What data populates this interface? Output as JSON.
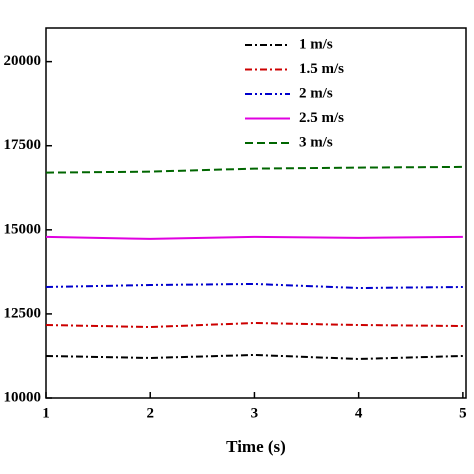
{
  "chart_data": {
    "type": "line",
    "x_label": "Time (s)",
    "x": [
      1,
      2,
      3,
      4,
      5
    ],
    "xlim": [
      1,
      5.03
    ],
    "xticks": [
      1,
      2,
      3,
      4,
      5
    ],
    "ylim": [
      10000,
      21000
    ],
    "yticks": [
      10000,
      12500,
      15000,
      17500,
      20000
    ],
    "series": [
      {
        "name": "1 m/s",
        "color": "#000000",
        "dash": "7,3,2,3",
        "values": [
          11250,
          11190,
          11280,
          11160,
          11250
        ]
      },
      {
        "name": "1.5 m/s",
        "color": "#cc0000",
        "dash": "7,3,2,3",
        "values": [
          12170,
          12110,
          12230,
          12170,
          12140
        ]
      },
      {
        "name": "2 m/s",
        "color": "#0000cc",
        "dash": "7,3,2,3,2,3",
        "values": [
          13300,
          13360,
          13390,
          13270,
          13300
        ]
      },
      {
        "name": "2.5 m/s",
        "color": "#e000e0",
        "dash": "none",
        "values": [
          14790,
          14730,
          14790,
          14760,
          14790
        ]
      },
      {
        "name": "3 m/s",
        "color": "#006600",
        "dash": "8,4",
        "values": [
          16700,
          16730,
          16820,
          16850,
          16870
        ]
      }
    ]
  }
}
